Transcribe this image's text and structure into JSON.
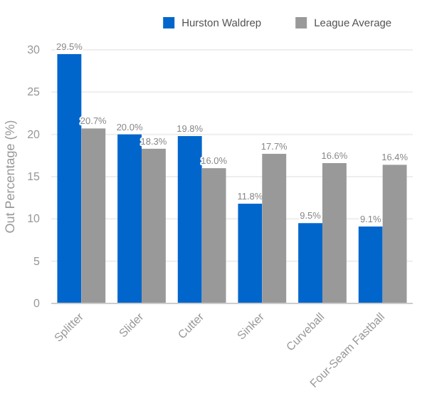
{
  "chart_data": {
    "type": "bar",
    "ylabel": "Out Percentage (%)",
    "categories": [
      "Splitter",
      "Slider",
      "Cutter",
      "Sinker",
      "Curveball",
      "Four-Seam Fastball"
    ],
    "series": [
      {
        "name": "Hurston Waldrep",
        "color": "#0066cc",
        "values": [
          29.5,
          20.0,
          19.8,
          11.8,
          9.5,
          9.1
        ],
        "value_labels": [
          "29.5%",
          "20.0%",
          "19.8%",
          "11.8%",
          "9.5%",
          "9.1%"
        ]
      },
      {
        "name": "League Average",
        "color": "#999999",
        "values": [
          20.7,
          18.3,
          16.0,
          17.7,
          16.6,
          16.4
        ],
        "value_labels": [
          "20.7%",
          "18.3%",
          "16.0%",
          "17.7%",
          "16.6%",
          "16.4%"
        ]
      }
    ],
    "ylim": [
      0,
      30
    ],
    "yticks": [
      0,
      5,
      10,
      15,
      20,
      25,
      30
    ],
    "grid": "y",
    "legend": "top right"
  }
}
